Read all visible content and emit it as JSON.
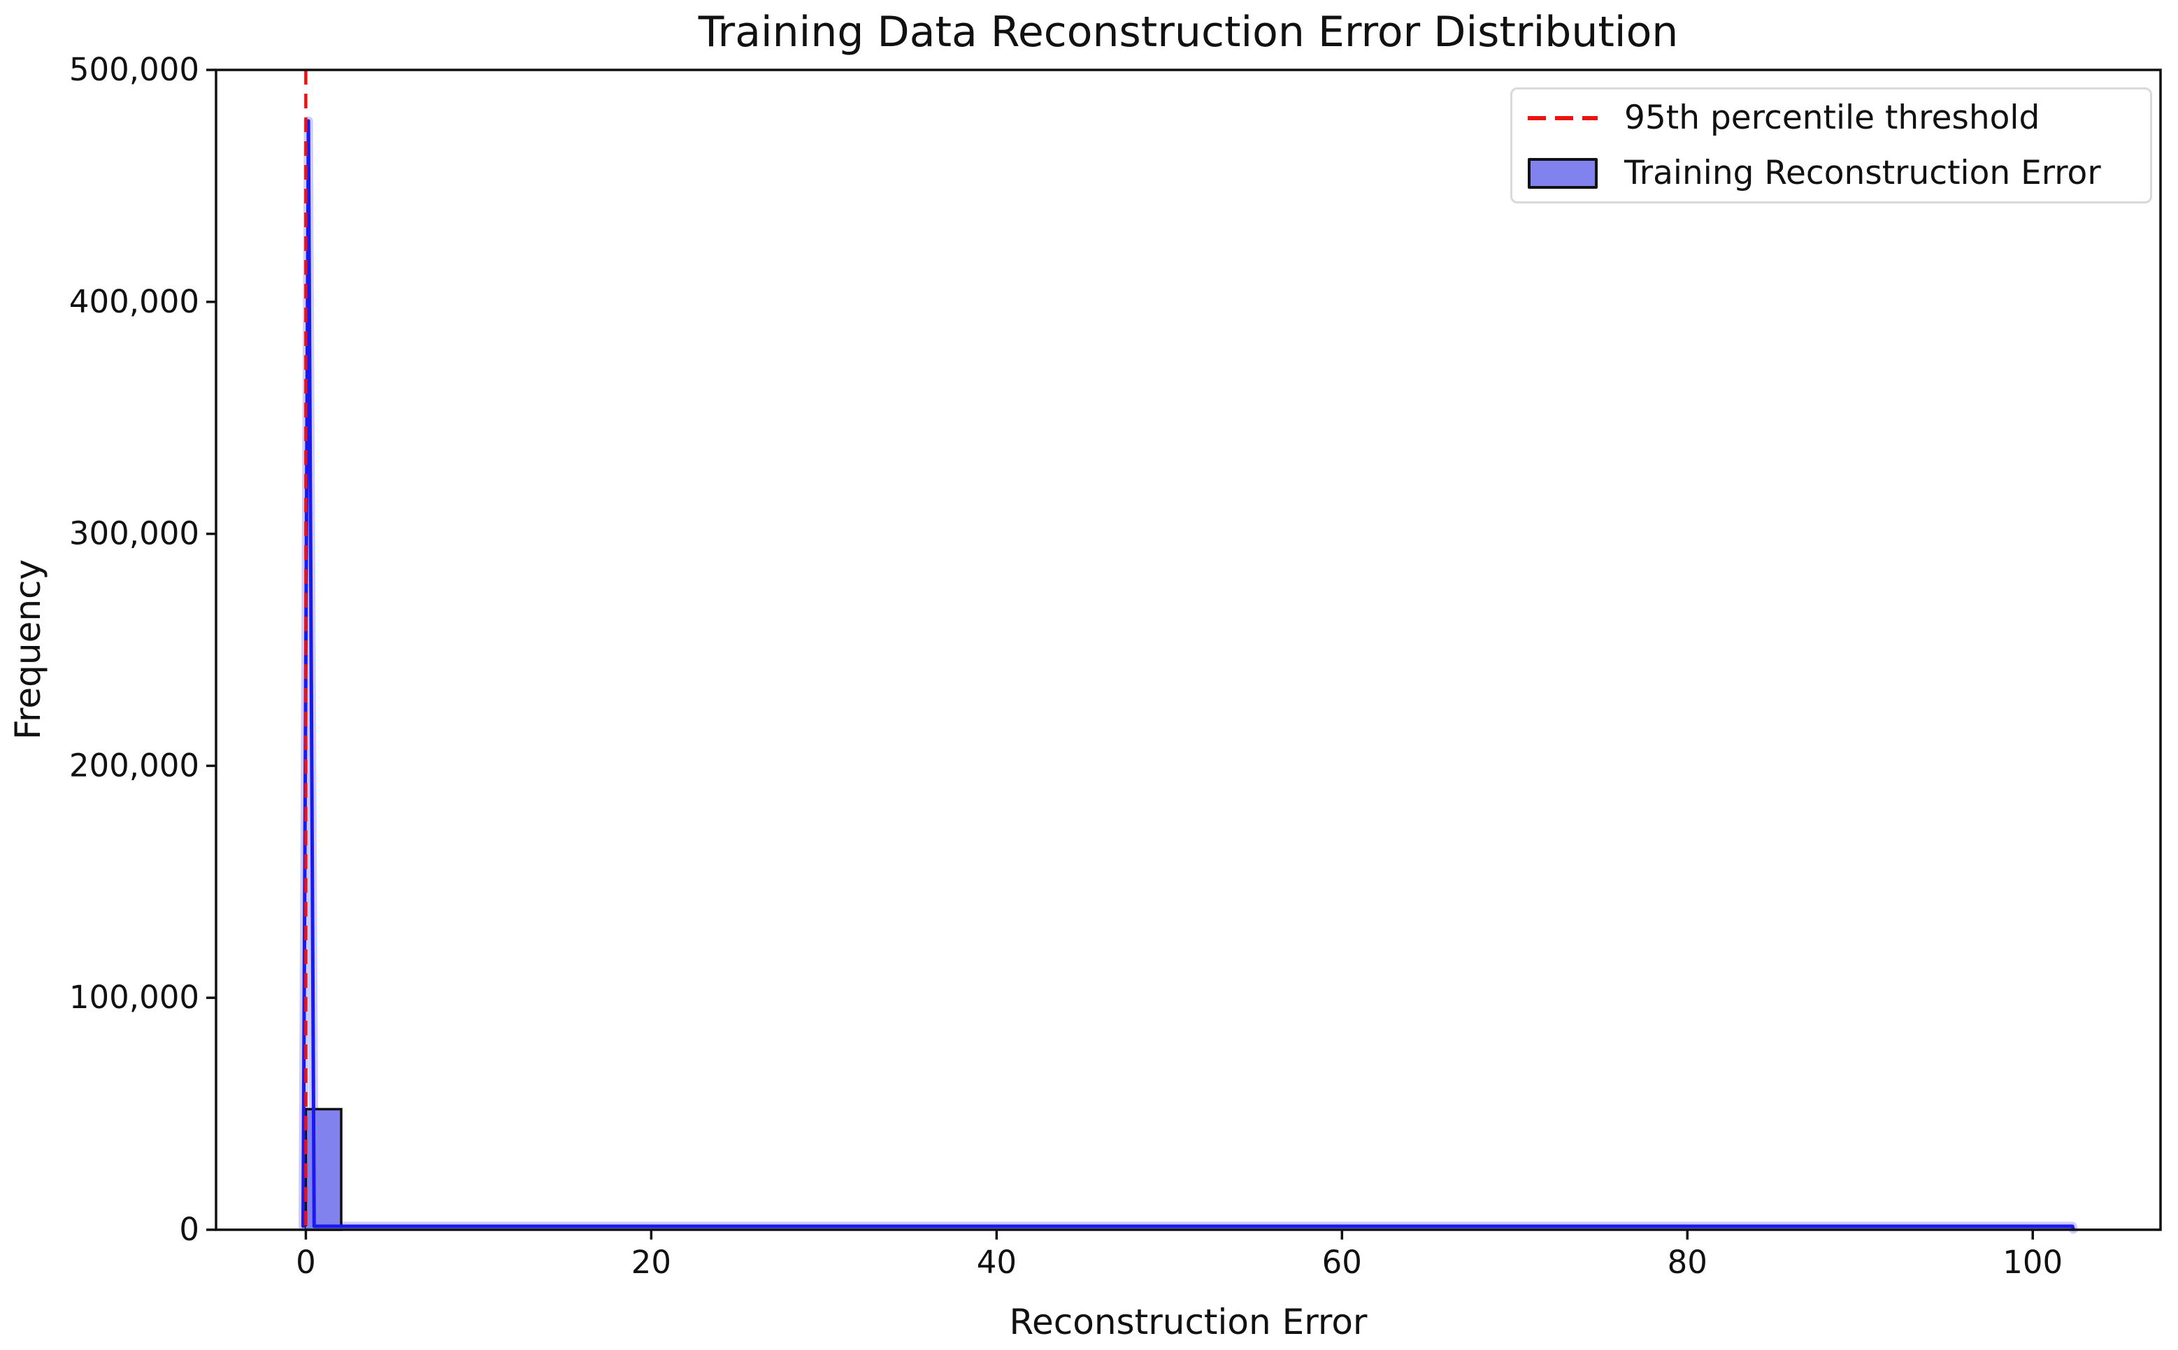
{
  "chart_data": {
    "type": "histogram",
    "title": "Training Data Reconstruction Error Distribution",
    "xlabel": "Reconstruction Error",
    "ylabel": "Frequency",
    "xlim": [
      -5.2,
      107.4
    ],
    "ylim": [
      0,
      500000
    ],
    "xticks": [
      0,
      20,
      40,
      60,
      80,
      100
    ],
    "xtick_labels": [
      "0",
      "20",
      "40",
      "60",
      "80",
      "100"
    ],
    "yticks": [
      0,
      100000,
      200000,
      300000,
      400000,
      500000
    ],
    "ytick_labels": [
      "0",
      "100,000",
      "200,000",
      "300,000",
      "400,000",
      "500,000"
    ],
    "grid": false,
    "colors": {
      "threshold_red": "#ee1111",
      "kde_blue": "#1a1aee",
      "kde_halo": "rgba(130,130,238,0.40)",
      "bar_fill": "#8182ee",
      "bar_edge": "#111111",
      "spine": "#111111"
    },
    "threshold": {
      "x": 0.0,
      "label": "95th percentile threshold",
      "linestyle": "dashed"
    },
    "histogram": {
      "label": "Training Reconstruction Error",
      "bin_width": 2.05,
      "bars": [
        {
          "x0": 0.0,
          "x1": 2.05,
          "count": 52000
        }
      ],
      "baseline_strip": {
        "x0": 0.0,
        "x1": 102.3,
        "count": 1500
      }
    },
    "kde_line": {
      "peak_x": 0.15,
      "peak_count": 478000,
      "points": [
        [
          -0.16,
          1500
        ],
        [
          0.15,
          478000
        ],
        [
          0.48,
          1500
        ],
        [
          102.3,
          1500
        ],
        [
          102.35,
          200
        ]
      ]
    },
    "legend": {
      "position": "upper right",
      "entries": [
        {
          "label": "95th percentile threshold",
          "type": "dashed-line",
          "color": "#ee1111"
        },
        {
          "label": "Training Reconstruction Error",
          "type": "patch",
          "fill": "#8182ee",
          "edge": "#111111"
        }
      ]
    }
  }
}
